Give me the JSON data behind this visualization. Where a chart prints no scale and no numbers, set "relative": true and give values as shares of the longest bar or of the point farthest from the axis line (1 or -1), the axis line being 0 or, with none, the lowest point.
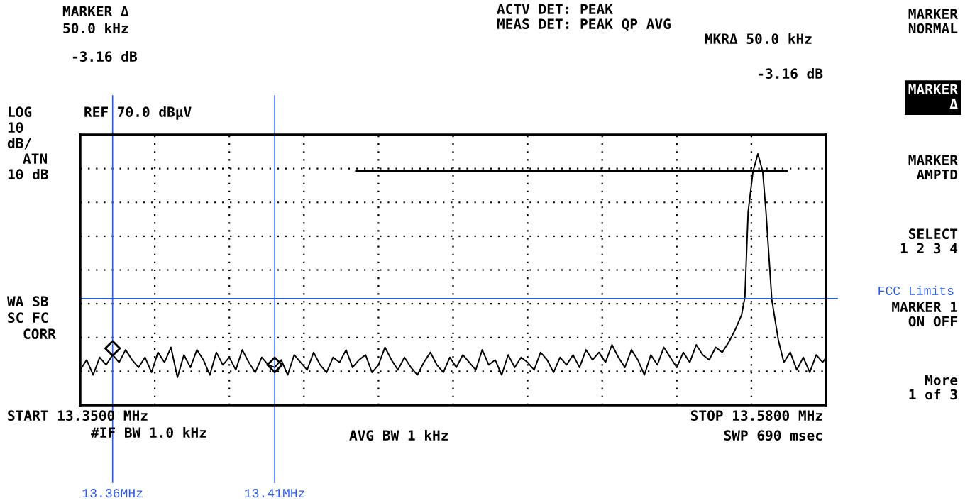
{
  "chart_data": {
    "type": "line",
    "relative": true,
    "xlim": [
      13.35,
      13.58
    ],
    "xticks": [
      {
        "value": 13.36,
        "label": "13.36MHz"
      },
      {
        "value": 13.41,
        "label": "13.41MHz"
      }
    ],
    "grid": true,
    "tick_labels": "x",
    "series": [
      {
        "color": "#000000",
        "marker": "none",
        "x": [
          13.35,
          13.352,
          13.354,
          13.356,
          13.358,
          13.36,
          13.362,
          13.364,
          13.366,
          13.368,
          13.37,
          13.372,
          13.374,
          13.376,
          13.378,
          13.38,
          13.382,
          13.384,
          13.386,
          13.388,
          13.39,
          13.392,
          13.394,
          13.396,
          13.398,
          13.4,
          13.402,
          13.404,
          13.406,
          13.408,
          13.41,
          13.412,
          13.414,
          13.416,
          13.418,
          13.42,
          13.422,
          13.424,
          13.426,
          13.428,
          13.43,
          13.432,
          13.434,
          13.436,
          13.438,
          13.44,
          13.442,
          13.444,
          13.446,
          13.448,
          13.45,
          13.452,
          13.454,
          13.456,
          13.458,
          13.46,
          13.462,
          13.464,
          13.466,
          13.468,
          13.47,
          13.472,
          13.474,
          13.476,
          13.478,
          13.48,
          13.482,
          13.484,
          13.486,
          13.488,
          13.49,
          13.492,
          13.494,
          13.496,
          13.498,
          13.5,
          13.502,
          13.504,
          13.506,
          13.508,
          13.51,
          13.512,
          13.514,
          13.516,
          13.518,
          13.52,
          13.522,
          13.524,
          13.526,
          13.528,
          13.53,
          13.532,
          13.534,
          13.536,
          13.538,
          13.54,
          13.542,
          13.544,
          13.546,
          13.548,
          13.55,
          13.552,
          13.554,
          13.555,
          13.556,
          13.5575,
          13.559,
          13.5605,
          13.5615,
          13.5633,
          13.5653,
          13.567,
          13.569,
          13.571,
          13.573,
          13.575,
          13.577,
          13.579,
          13.58
        ],
        "values": [
          0.14,
          0.18,
          0.12,
          0.19,
          0.16,
          0.2,
          0.17,
          0.22,
          0.18,
          0.15,
          0.19,
          0.13,
          0.21,
          0.17,
          0.23,
          0.11,
          0.2,
          0.15,
          0.22,
          0.18,
          0.12,
          0.21,
          0.16,
          0.19,
          0.14,
          0.22,
          0.17,
          0.13,
          0.19,
          0.16,
          0.15,
          0.18,
          0.12,
          0.2,
          0.17,
          0.14,
          0.21,
          0.16,
          0.13,
          0.19,
          0.17,
          0.22,
          0.15,
          0.18,
          0.2,
          0.13,
          0.16,
          0.23,
          0.18,
          0.14,
          0.19,
          0.15,
          0.12,
          0.17,
          0.21,
          0.16,
          0.13,
          0.19,
          0.15,
          0.2,
          0.17,
          0.14,
          0.22,
          0.16,
          0.18,
          0.12,
          0.2,
          0.15,
          0.19,
          0.17,
          0.14,
          0.21,
          0.18,
          0.13,
          0.19,
          0.16,
          0.2,
          0.15,
          0.22,
          0.18,
          0.21,
          0.17,
          0.24,
          0.19,
          0.15,
          0.22,
          0.18,
          0.12,
          0.2,
          0.16,
          0.23,
          0.19,
          0.15,
          0.21,
          0.17,
          0.24,
          0.2,
          0.18,
          0.23,
          0.21,
          0.25,
          0.3,
          0.36,
          0.43,
          0.77,
          0.93,
          1.0,
          0.93,
          0.77,
          0.42,
          0.26,
          0.17,
          0.21,
          0.14,
          0.19,
          0.13,
          0.2,
          0.17,
          0.19
        ]
      },
      {
        "color": "#000000",
        "marker": "none",
        "x": [
          13.435,
          13.568
        ],
        "values": [
          0.932,
          0.932
        ]
      },
      {
        "type": "scatter",
        "color": "#000000",
        "marker": "diamond",
        "x": [
          13.36,
          13.41
        ],
        "values": [
          0.226,
          0.16
        ]
      }
    ],
    "ref_lines": [
      {
        "axis": "x",
        "value": 13.36,
        "color": "#2b5ce6"
      },
      {
        "axis": "x",
        "value": 13.41,
        "color": "#2b5ce6"
      },
      {
        "axis": "y",
        "value": 0.424,
        "label": "FCC Limits",
        "color": "#2b5ce6"
      }
    ],
    "annotations": [
      "MARKER Δ",
      "50.0 kHz",
      "-3.16 dB",
      "ACTV DET: PEAK",
      "MEAS DET: PEAK QP AVG",
      "MKRΔ 50.0 kHz",
      "-3.16 dB",
      "LOG",
      "REF 70.0 dBµV",
      "10",
      "dB/",
      "ATN",
      "10 dB",
      "WA SB",
      "SC FC",
      "CORR",
      "START 13.3500 MHz",
      "STOP 13.5800 MHz",
      "#IF BW 1.0 kHz",
      "AVG BW 1 kHz",
      "SWP 690 msec",
      "MARKER\nNORMAL",
      "MARKER\nΔ",
      "MARKER\nAMPTD",
      "SELECT\n1 2 3 4",
      "MARKER 1\nON OFF",
      "More\n1 of 3"
    ]
  }
}
